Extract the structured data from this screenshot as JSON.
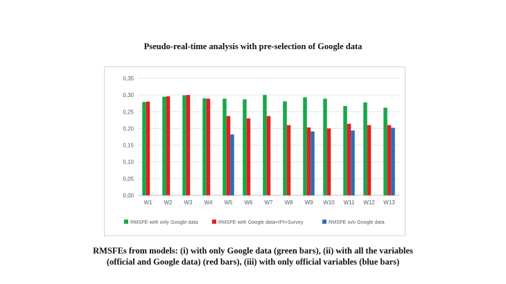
{
  "title": "Pseudo-real-time analysis with pre-selection of Google data",
  "caption": {
    "line1": "RMSFEs from models: (i) with only Google data (green bars), (ii) with all the variables",
    "line2": "(official and Google data)   (red bars), (iii) with only official variables (blue bars)"
  },
  "chart_data": {
    "type": "bar",
    "categories": [
      "W1",
      "W2",
      "W3",
      "W4",
      "W5",
      "W6",
      "W7",
      "W8",
      "W9",
      "W10",
      "W11",
      "W12",
      "W13"
    ],
    "series": [
      {
        "name": "RMSFE with only Google data",
        "color": "#1aa64a",
        "values": [
          0.279,
          0.295,
          0.299,
          0.29,
          0.289,
          0.287,
          0.3,
          0.281,
          0.293,
          0.289,
          0.267,
          0.278,
          0.262
        ]
      },
      {
        "name": "RMSFE with Google data+IPI+Survey",
        "color": "#e02020",
        "values": [
          0.28,
          0.296,
          0.3,
          0.289,
          0.237,
          0.23,
          0.237,
          0.21,
          0.203,
          0.2,
          0.214,
          0.21,
          0.21
        ]
      },
      {
        "name": "RMSFE w/o Google data",
        "color": "#2e6db3",
        "values": [
          null,
          null,
          null,
          null,
          0.182,
          null,
          null,
          null,
          0.191,
          null,
          0.194,
          null,
          0.202
        ]
      }
    ],
    "yticks": [
      "0,00",
      "0,05",
      "0,10",
      "0,15",
      "0,20",
      "0,25",
      "0,30",
      "0,35"
    ],
    "ylim": [
      0,
      0.35
    ],
    "grid": true,
    "legend_position": "bottom"
  }
}
